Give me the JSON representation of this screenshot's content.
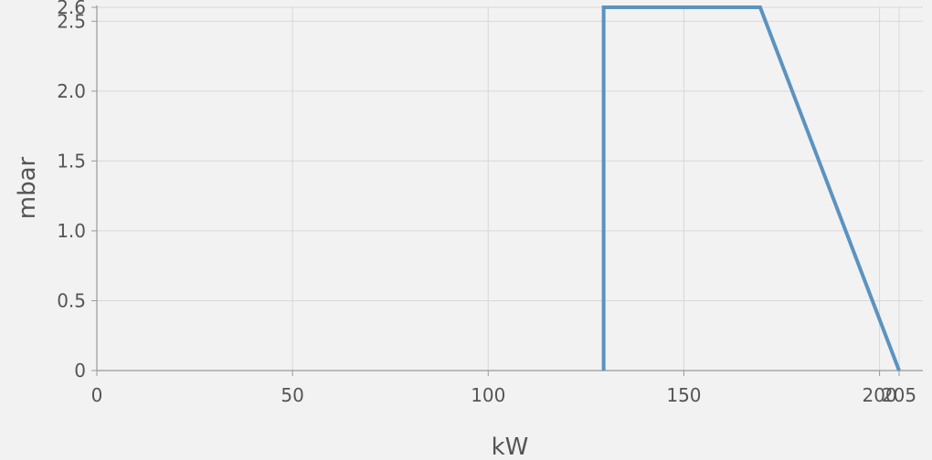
{
  "chart_data": {
    "type": "line",
    "xlabel": "kW",
    "ylabel": "mbar",
    "xlim": [
      0,
      205
    ],
    "ylim": [
      0,
      2.6
    ],
    "x_ticks": [
      {
        "value": 0,
        "label": "0"
      },
      {
        "value": 50,
        "label": "50"
      },
      {
        "value": 100,
        "label": "100"
      },
      {
        "value": 150,
        "label": "150"
      },
      {
        "value": 200,
        "label": "200"
      },
      {
        "value": 205,
        "label": "205"
      }
    ],
    "y_ticks": [
      {
        "value": 0,
        "label": "0"
      },
      {
        "value": 0.5,
        "label": "0.5"
      },
      {
        "value": 1.0,
        "label": "1.0"
      },
      {
        "value": 1.5,
        "label": "1.5"
      },
      {
        "value": 2.0,
        "label": "2.0"
      },
      {
        "value": 2.5,
        "label": "2.5"
      },
      {
        "value": 2.6,
        "label": "2.6"
      }
    ],
    "grid": true,
    "series": [
      {
        "color": "#5b93bf",
        "points": [
          {
            "x": 129.5,
            "y": 0
          },
          {
            "x": 129.5,
            "y": 2.6
          },
          {
            "x": 169.5,
            "y": 2.6
          },
          {
            "x": 205,
            "y": 0
          }
        ]
      }
    ]
  }
}
